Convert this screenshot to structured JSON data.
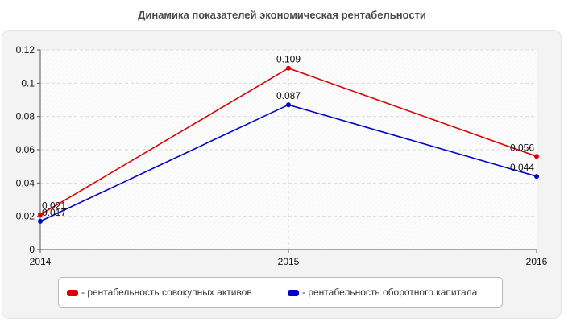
{
  "title": "Динамика показателей экономическая рентабельности",
  "chart_data": {
    "type": "line",
    "categories": [
      "2014",
      "2015",
      "2016"
    ],
    "ylim": [
      0,
      0.12
    ],
    "yticks": [
      0,
      0.02,
      0.04,
      0.06,
      0.08,
      0.1,
      0.12
    ],
    "ytick_labels": [
      "0",
      "0.02",
      "0.04",
      "0.06",
      "0.08",
      "0.1",
      "0.12"
    ],
    "grid": true,
    "legend_position": "bottom",
    "series": [
      {
        "name": "рентабельность совокупных активов",
        "legend_label": "- рентабельность совокупных активов",
        "color": "#dd0000",
        "values": [
          0.021,
          0.109,
          0.056
        ],
        "labels": [
          "0.021",
          "0.109",
          "0.056"
        ]
      },
      {
        "name": "рентабельность оборотного капитала",
        "legend_label": "- рентабельность оборотного капитала",
        "color": "#0000cc",
        "values": [
          0.017,
          0.087,
          0.044
        ],
        "labels": [
          "0.017",
          "0.087",
          "0.044"
        ]
      }
    ]
  }
}
